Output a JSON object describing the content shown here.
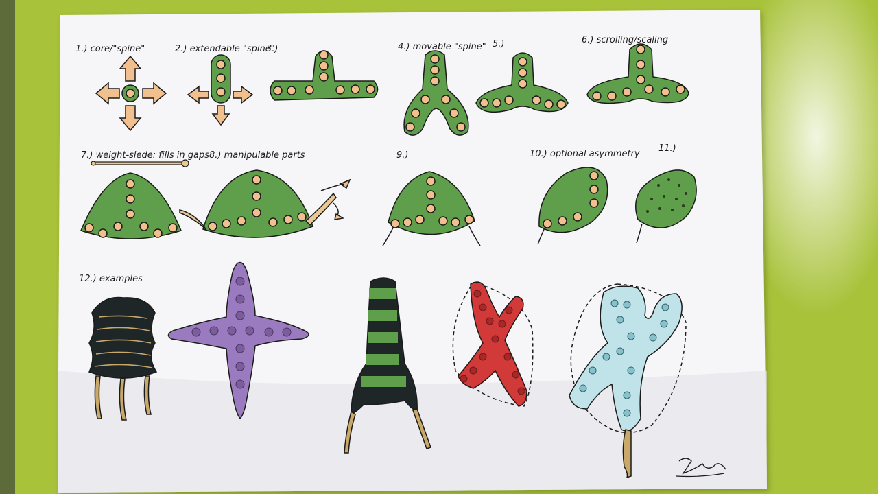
{
  "colors": {
    "table": "#a8c23a",
    "paper": "#f6f6f8",
    "green": "#5f9e4a",
    "orange": "#f2c08f",
    "purple": "#9b7bbf",
    "red": "#d23a3a",
    "lightblue": "#bfe3e8",
    "dark": "#1e2628",
    "outline": "#1b1b1b"
  },
  "labels": {
    "l1": "1.) core/\"spine\"",
    "l2": "2.) extendable \"spine\"",
    "l3": "3.)",
    "l4": "4.) movable \"spine\"",
    "l5": "5.)",
    "l6": "6.) scrolling/scaling",
    "l7": "7.) weight-slede: fills in gaps",
    "l8": "8.) manipulable parts",
    "l9": "9.)",
    "l10": "10.) optional asymmetry",
    "l11": "11.)",
    "l12": "12.) examples"
  },
  "signature": "Zeller"
}
